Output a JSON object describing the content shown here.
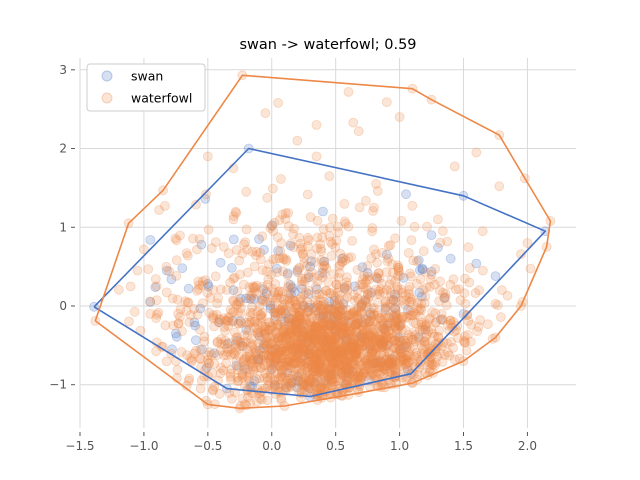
{
  "chart_data": {
    "type": "scatter",
    "title": "swan -> waterfowl; 0.59",
    "xlabel": "",
    "ylabel": "",
    "xlim": [
      -1.5,
      2.38
    ],
    "ylim": [
      -1.55,
      3.15
    ],
    "xticks": [
      -1.5,
      -1.0,
      -0.5,
      0.0,
      0.5,
      1.0,
      1.5,
      2.0
    ],
    "xtick_labels": [
      "−1.5",
      "−1.0",
      "−0.5",
      "0.0",
      "0.5",
      "1.0",
      "1.5",
      "2.0"
    ],
    "yticks": [
      -1,
      0,
      1,
      2,
      3
    ],
    "ytick_labels": [
      "−1",
      "0",
      "1",
      "2",
      "3"
    ],
    "grid": true,
    "legend": {
      "position": "top-left",
      "entries": [
        "swan",
        "waterfowl"
      ]
    },
    "series": [
      {
        "name": "swan",
        "color": "#4472c4",
        "marker_alpha": 0.22,
        "hull": [
          [
            -1.39,
            -0.01
          ],
          [
            -0.35,
            -1.05
          ],
          [
            0.3,
            -1.15
          ],
          [
            1.09,
            -0.86
          ],
          [
            2.14,
            0.95
          ],
          [
            1.5,
            1.4
          ],
          [
            -0.18,
            2.0
          ],
          [
            -1.39,
            -0.01
          ]
        ],
        "points": [
          [
            -1.39,
            -0.01
          ],
          [
            -0.35,
            -1.05
          ],
          [
            0.3,
            -1.15
          ],
          [
            1.09,
            -0.86
          ],
          [
            2.14,
            0.95
          ],
          [
            1.5,
            1.4
          ],
          [
            -0.18,
            2.0
          ],
          [
            -0.52,
            1.36
          ],
          [
            -0.95,
            0.84
          ],
          [
            -0.7,
            0.48
          ],
          [
            -0.82,
            0.45
          ],
          [
            -0.65,
            0.22
          ],
          [
            -0.95,
            0.05
          ],
          [
            -0.75,
            -0.35
          ],
          [
            -0.78,
            -0.55
          ],
          [
            -0.5,
            0.28
          ],
          [
            -0.55,
            0.78
          ],
          [
            -0.4,
            0.55
          ],
          [
            -0.1,
            0.85
          ],
          [
            0.05,
            0.7
          ],
          [
            0.2,
            0.45
          ],
          [
            0.3,
            0.5
          ],
          [
            0.55,
            0.6
          ],
          [
            0.75,
            0.42
          ],
          [
            0.9,
            0.65
          ],
          [
            1.15,
            0.58
          ],
          [
            1.3,
            0.74
          ],
          [
            1.4,
            0.6
          ],
          [
            1.6,
            0.54
          ],
          [
            1.75,
            0.38
          ],
          [
            1.05,
            1.42
          ],
          [
            1.25,
            0.9
          ],
          [
            0.4,
            1.2
          ],
          [
            -0.3,
            0.2
          ],
          [
            -0.2,
            -0.3
          ],
          [
            0.1,
            -0.2
          ],
          [
            0.3,
            -0.5
          ],
          [
            0.5,
            -0.6
          ],
          [
            0.7,
            -0.4
          ],
          [
            0.9,
            -0.5
          ],
          [
            1.2,
            -0.3
          ],
          [
            1.35,
            0.1
          ],
          [
            1.5,
            -0.1
          ],
          [
            -0.6,
            -0.25
          ],
          [
            -0.45,
            -0.6
          ],
          [
            0.0,
            -0.8
          ],
          [
            0.2,
            -0.9
          ],
          [
            0.6,
            -0.8
          ],
          [
            0.85,
            -0.7
          ],
          [
            0.15,
            0.15
          ],
          [
            0.45,
            0.05
          ],
          [
            0.65,
            0.25
          ]
        ]
      },
      {
        "name": "waterfowl",
        "color": "#ed8847",
        "marker_alpha": 0.22,
        "hull": [
          [
            -1.38,
            -0.19
          ],
          [
            -0.5,
            -1.25
          ],
          [
            -0.25,
            -1.3
          ],
          [
            0.1,
            -1.27
          ],
          [
            0.6,
            -1.13
          ],
          [
            1.1,
            -0.98
          ],
          [
            1.5,
            -0.7
          ],
          [
            1.75,
            -0.4
          ],
          [
            1.95,
            0.0
          ],
          [
            2.15,
            0.75
          ],
          [
            2.18,
            1.08
          ],
          [
            1.98,
            1.62
          ],
          [
            1.78,
            2.17
          ],
          [
            1.25,
            2.62
          ],
          [
            1.1,
            2.76
          ],
          [
            -0.23,
            2.93
          ],
          [
            -0.85,
            1.47
          ],
          [
            -1.12,
            1.05
          ],
          [
            -1.38,
            -0.19
          ]
        ],
        "points": [
          [
            -1.38,
            -0.19
          ],
          [
            -0.5,
            -1.25
          ],
          [
            -0.25,
            -1.3
          ],
          [
            0.1,
            -1.27
          ],
          [
            0.6,
            -1.13
          ],
          [
            1.1,
            -0.98
          ],
          [
            1.5,
            -0.7
          ],
          [
            1.75,
            -0.4
          ],
          [
            1.95,
            0.0
          ],
          [
            2.15,
            0.75
          ],
          [
            2.18,
            1.08
          ],
          [
            1.98,
            1.62
          ],
          [
            1.78,
            2.17
          ],
          [
            1.25,
            2.62
          ],
          [
            1.1,
            2.76
          ],
          [
            -0.23,
            2.93
          ],
          [
            -0.85,
            1.47
          ],
          [
            -1.12,
            1.05
          ],
          [
            0.05,
            2.58
          ],
          [
            0.6,
            2.72
          ],
          [
            0.9,
            2.59
          ],
          [
            0.68,
            2.22
          ],
          [
            1.0,
            2.4
          ],
          [
            0.35,
            2.3
          ],
          [
            1.6,
            1.95
          ],
          [
            -0.05,
            2.45
          ],
          [
            0.2,
            2.1
          ],
          [
            -0.5,
            1.9
          ],
          [
            -0.3,
            1.75
          ],
          [
            1.78,
            1.52
          ],
          [
            -1.0,
            0.72
          ],
          [
            -1.05,
            0.45
          ],
          [
            -0.9,
            0.25
          ],
          [
            -0.95,
            -0.1
          ],
          [
            -0.65,
            -0.95
          ],
          [
            -0.3,
            1.1
          ],
          [
            0.45,
            1.65
          ],
          [
            0.8,
            1.25
          ],
          [
            1.3,
            1.1
          ],
          [
            1.65,
            0.95
          ],
          [
            2.0,
            0.8
          ],
          [
            1.8,
            0.2
          ],
          [
            -0.75,
            -0.7
          ],
          [
            -0.2,
            1.45
          ],
          [
            0.35,
            1.9
          ]
        ]
      }
    ]
  }
}
